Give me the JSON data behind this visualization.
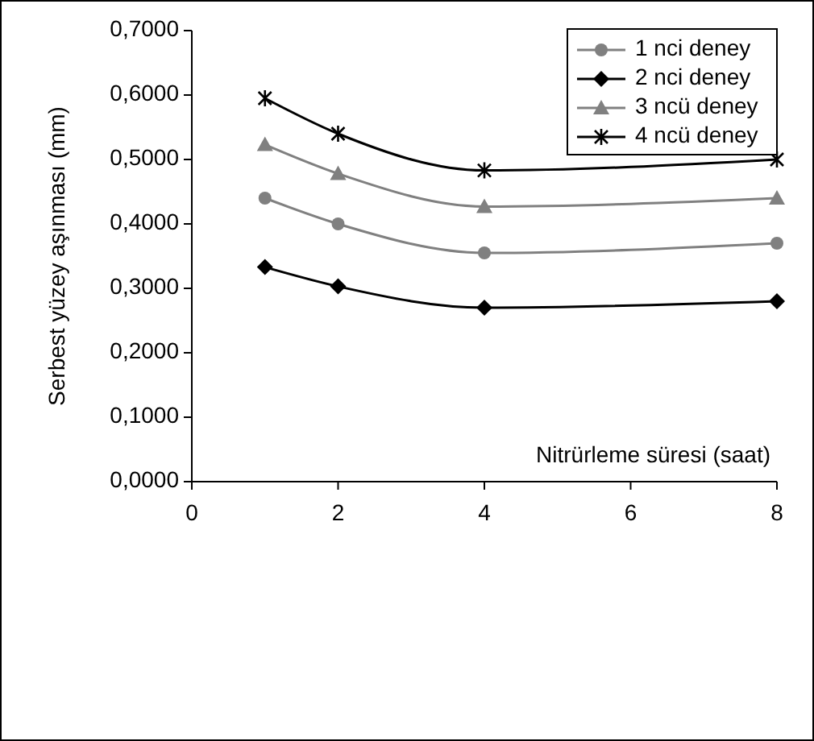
{
  "chart_data": {
    "type": "line",
    "xlabel": "Nitrürleme süresi (saat)",
    "ylabel": "Serbest yüzey aşınması (mm)",
    "x": [
      1,
      2,
      4,
      8
    ],
    "series": [
      {
        "name": "1 nci deney",
        "color": "#808080",
        "marker": "circle",
        "values": [
          0.44,
          0.4,
          0.355,
          0.37
        ]
      },
      {
        "name": "2 nci deney",
        "color": "#000000",
        "marker": "diamond",
        "values": [
          0.333,
          0.303,
          0.27,
          0.28
        ]
      },
      {
        "name": "3 ncü deney",
        "color": "#808080",
        "marker": "triangle",
        "values": [
          0.523,
          0.478,
          0.427,
          0.44
        ]
      },
      {
        "name": "4 ncü deney",
        "color": "#000000",
        "marker": "cross",
        "values": [
          0.595,
          0.54,
          0.483,
          0.5
        ]
      }
    ],
    "xlim": [
      0,
      8
    ],
    "xticks": [
      0,
      2,
      4,
      6,
      8
    ],
    "ylim": [
      0,
      0.7
    ],
    "yticks": [
      {
        "value": 0,
        "label": "0,0000"
      },
      {
        "value": 0.1,
        "label": "0,1000"
      },
      {
        "value": 0.2,
        "label": "0,2000"
      },
      {
        "value": 0.3,
        "label": "0,3000"
      },
      {
        "value": 0.4,
        "label": "0,4000"
      },
      {
        "value": 0.5,
        "label": "0,5000"
      },
      {
        "value": 0.6,
        "label": "0,6000"
      },
      {
        "value": 0.7,
        "label": "0,7000"
      }
    ],
    "grid": false,
    "legend": "top right",
    "line_style": "solid"
  }
}
